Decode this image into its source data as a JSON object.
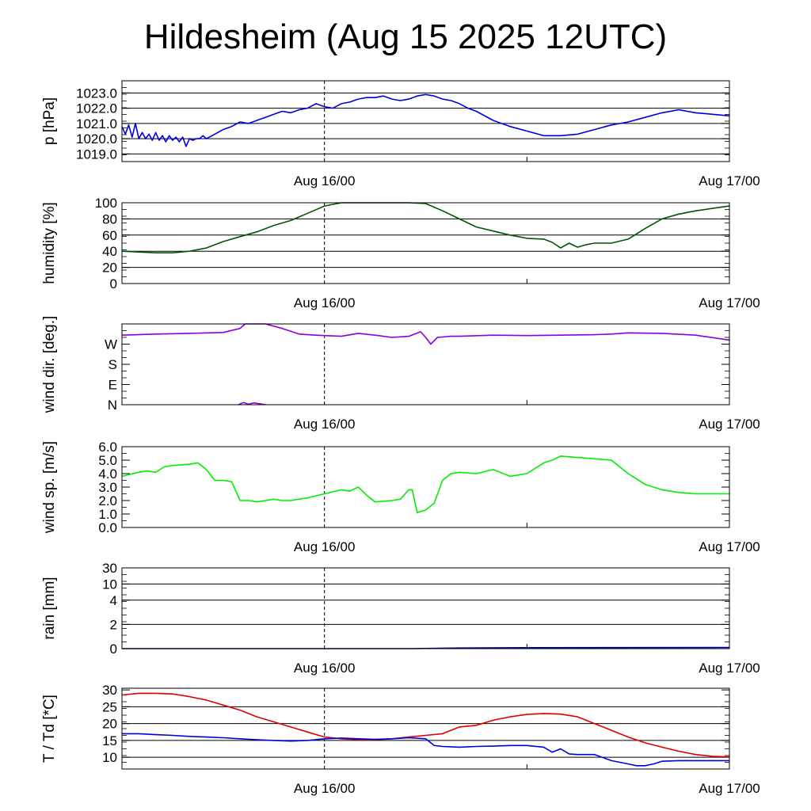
{
  "page": {
    "title": "Hildesheim (Aug 15 2025 12UTC)"
  },
  "chart_data": [
    {
      "type": "line",
      "ylabel": "p [hPa]",
      "x_ticks": [
        "Aug 16/00",
        "Aug 17/00"
      ],
      "x_range": [
        0,
        36
      ],
      "ylim": [
        1018.5,
        1023.8
      ],
      "y_ticks": [
        {
          "v": 1019.0,
          "label": "1019.0"
        },
        {
          "v": 1020.0,
          "label": "1020.0"
        },
        {
          "v": 1021.0,
          "label": "1021.0"
        },
        {
          "v": 1022.0,
          "label": "1022.0"
        },
        {
          "v": 1023.0,
          "label": "1023.0"
        }
      ],
      "grid_y": [
        1019,
        1020,
        1021,
        1022,
        1023
      ],
      "series": [
        {
          "color": "#0000dd",
          "x": [
            0,
            0.2,
            0.4,
            0.6,
            0.8,
            1.0,
            1.2,
            1.4,
            1.6,
            1.8,
            2.0,
            2.2,
            2.4,
            2.6,
            2.8,
            3.0,
            3.2,
            3.4,
            3.6,
            3.8,
            4.0,
            4.2,
            4.4,
            4.6,
            4.8,
            5.0,
            5.5,
            6.0,
            6.5,
            7,
            7.5,
            8,
            8.5,
            9,
            9.5,
            10,
            10.5,
            11,
            11.5,
            12,
            12.5,
            13,
            13.5,
            14,
            14.5,
            15,
            15.5,
            16,
            16.5,
            17,
            17.5,
            18,
            18.5,
            19,
            19.5,
            20,
            20.5,
            21,
            22,
            23,
            24,
            25,
            26,
            27,
            28,
            29,
            30,
            31,
            32,
            33,
            34,
            35,
            36
          ],
          "values": [
            1020.8,
            1020.3,
            1020.9,
            1020.1,
            1021.0,
            1020.0,
            1020.4,
            1020.0,
            1020.3,
            1019.9,
            1020.4,
            1019.9,
            1020.2,
            1019.8,
            1020.2,
            1019.9,
            1020.1,
            1019.8,
            1020.1,
            1019.5,
            1020.0,
            1019.9,
            1020.0,
            1020.0,
            1020.2,
            1020.0,
            1020.3,
            1020.6,
            1020.8,
            1021.1,
            1021.0,
            1021.2,
            1021.4,
            1021.6,
            1021.8,
            1021.7,
            1021.9,
            1022.0,
            1022.3,
            1022.1,
            1022.0,
            1022.3,
            1022.4,
            1022.6,
            1022.7,
            1022.7,
            1022.8,
            1022.6,
            1022.5,
            1022.6,
            1022.8,
            1022.9,
            1022.8,
            1022.6,
            1022.5,
            1022.3,
            1022.0,
            1021.8,
            1021.2,
            1020.8,
            1020.5,
            1020.2,
            1020.2,
            1020.3,
            1020.6,
            1020.9,
            1021.1,
            1021.4,
            1021.7,
            1021.9,
            1021.7,
            1021.6,
            1021.5
          ]
        }
      ]
    },
    {
      "type": "line",
      "ylabel": "humidity [%]",
      "x_ticks": [
        "Aug 16/00",
        "Aug 17/00"
      ],
      "x_range": [
        0,
        36
      ],
      "ylim": [
        0,
        100
      ],
      "y_ticks": [
        {
          "v": 0,
          "label": "0"
        },
        {
          "v": 20,
          "label": "20"
        },
        {
          "v": 40,
          "label": "40"
        },
        {
          "v": 60,
          "label": "60"
        },
        {
          "v": 80,
          "label": "80"
        },
        {
          "v": 100,
          "label": "100"
        }
      ],
      "grid_y": [
        20,
        40,
        60,
        80
      ],
      "series": [
        {
          "color": "#005500",
          "x": [
            0,
            1,
            2,
            3,
            4,
            5,
            6,
            7,
            8,
            9,
            10,
            11,
            12,
            13,
            14,
            15,
            16,
            17,
            18,
            19,
            20,
            21,
            22,
            23,
            24,
            25,
            25.5,
            26,
            26.5,
            27,
            27.5,
            28,
            29,
            30,
            31,
            32,
            33,
            34,
            35,
            36
          ],
          "values": [
            40,
            39,
            38,
            38,
            40,
            44,
            52,
            58,
            64,
            72,
            78,
            87,
            96,
            100,
            100,
            100,
            100,
            100,
            99,
            90,
            80,
            70,
            65,
            60,
            56,
            55,
            51,
            44,
            50,
            45,
            48,
            50,
            50,
            55,
            68,
            80,
            86,
            90,
            93,
            96
          ]
        }
      ]
    },
    {
      "type": "line",
      "ylabel": "wind dir. [deg.]",
      "x_ticks": [
        "Aug 16/00",
        "Aug 17/00"
      ],
      "x_range": [
        0,
        36
      ],
      "ylim": [
        0,
        360
      ],
      "y_ticks": [
        {
          "v": 0,
          "label": "N"
        },
        {
          "v": 90,
          "label": "E"
        },
        {
          "v": 180,
          "label": "S"
        },
        {
          "v": 270,
          "label": "W"
        }
      ],
      "grid_y": [],
      "series": [
        {
          "color": "#8800dd",
          "x": [
            0,
            2,
            4,
            6,
            7,
            7.3,
            8.5,
            9.5,
            10.5,
            11.5,
            12,
            13,
            14,
            15,
            16,
            17,
            17.7,
            18,
            18.3,
            18.7,
            19.5,
            20,
            22,
            24,
            26,
            28,
            29,
            30,
            32,
            34,
            36
          ],
          "values": [
            310,
            315,
            318,
            322,
            340,
            360,
            360,
            340,
            315,
            310,
            308,
            305,
            318,
            310,
            300,
            305,
            325,
            300,
            270,
            300,
            305,
            305,
            310,
            308,
            310,
            312,
            315,
            320,
            318,
            310,
            288
          ]
        },
        {
          "color": "#8800dd",
          "x": [
            6.9,
            7.2,
            7.5,
            7.8,
            8.2,
            8.5
          ],
          "values": [
            0,
            10,
            2,
            8,
            4,
            0
          ]
        }
      ]
    },
    {
      "type": "line",
      "ylabel": "wind sp. [m/s]",
      "x_ticks": [
        "Aug 16/00",
        "Aug 17/00"
      ],
      "x_range": [
        0,
        36
      ],
      "ylim": [
        0,
        6.0
      ],
      "y_ticks": [
        {
          "v": 0,
          "label": "0.0"
        },
        {
          "v": 1,
          "label": "1.0"
        },
        {
          "v": 2,
          "label": "2.0"
        },
        {
          "v": 3,
          "label": "3.0"
        },
        {
          "v": 4,
          "label": "4.0"
        },
        {
          "v": 5,
          "label": "5.0"
        },
        {
          "v": 6,
          "label": "6.0"
        }
      ],
      "grid_y": [],
      "series": [
        {
          "color": "#00ee00",
          "x": [
            0,
            1,
            1.5,
            2,
            2.5,
            3,
            4,
            4.5,
            5,
            5.5,
            6,
            6.5,
            7,
            7.5,
            8,
            8.5,
            9,
            9.5,
            10,
            11,
            12,
            13,
            13.5,
            14,
            14.5,
            15,
            16,
            16.5,
            17,
            17.2,
            17.5,
            18,
            18.5,
            19,
            19.5,
            20,
            21,
            22,
            23,
            24,
            25,
            25.5,
            26,
            27,
            28,
            29,
            30,
            31,
            32,
            33,
            34,
            35,
            36
          ],
          "values": [
            3.8,
            4.1,
            4.2,
            4.1,
            4.5,
            4.6,
            4.7,
            4.8,
            4.3,
            3.5,
            3.5,
            3.4,
            2.0,
            2.0,
            1.9,
            2.0,
            2.1,
            2.0,
            2.0,
            2.2,
            2.5,
            2.8,
            2.7,
            3.0,
            2.4,
            1.9,
            2.0,
            2.1,
            2.8,
            2.8,
            1.1,
            1.3,
            1.8,
            3.5,
            4.0,
            4.1,
            4.0,
            4.3,
            3.8,
            4.0,
            4.8,
            5.0,
            5.3,
            5.2,
            5.1,
            5.0,
            4.0,
            3.2,
            2.8,
            2.6,
            2.5,
            2.5,
            2.5
          ]
        }
      ]
    },
    {
      "type": "line",
      "ylabel": "rain [mm]",
      "x_ticks": [
        "Aug 16/00",
        "Aug 17/00"
      ],
      "x_range": [
        0,
        36
      ],
      "scale": "nonlinear",
      "ylim": [
        0,
        30
      ],
      "y_ticks": [
        {
          "v": 0,
          "label": "0"
        },
        {
          "v": 2,
          "label": "2"
        },
        {
          "v": 4,
          "label": "4"
        },
        {
          "v": 10,
          "label": "10"
        },
        {
          "v": 30,
          "label": "30"
        }
      ],
      "grid_y": [
        2,
        4,
        10,
        30
      ],
      "series": [
        {
          "color": "#0000aa",
          "x": [
            0,
            17,
            20,
            24,
            36
          ],
          "values": [
            0,
            0,
            0.05,
            0.08,
            0.1
          ]
        }
      ]
    },
    {
      "type": "line",
      "ylabel": "T / Td [*C]",
      "x_ticks": [
        "Aug 16/00",
        "Aug 17/00"
      ],
      "x_range": [
        0,
        36
      ],
      "ylim": [
        6.5,
        30.5
      ],
      "y_ticks": [
        {
          "v": 10,
          "label": "10"
        },
        {
          "v": 15,
          "label": "15"
        },
        {
          "v": 20,
          "label": "20"
        },
        {
          "v": 25,
          "label": "25"
        },
        {
          "v": 30,
          "label": "30"
        }
      ],
      "grid_y": [
        10,
        15,
        20,
        25
      ],
      "series": [
        {
          "color": "#dd0000",
          "x": [
            0,
            1,
            2,
            3,
            4,
            5,
            6,
            7,
            8,
            9,
            10,
            11,
            12,
            13,
            14,
            15,
            16,
            17,
            18,
            19,
            20,
            21,
            22,
            23,
            24,
            25,
            26,
            27,
            28,
            29,
            30,
            31,
            32,
            33,
            34,
            35,
            36
          ],
          "values": [
            28.5,
            29,
            29,
            28.8,
            28,
            27,
            25.5,
            24,
            22,
            20.5,
            19,
            17.5,
            16,
            15.5,
            15.2,
            15.2,
            15.5,
            16,
            16.5,
            17,
            19,
            19.5,
            21,
            22,
            22.7,
            23,
            22.8,
            22,
            20,
            18,
            16,
            14.3,
            13,
            11.8,
            10.8,
            10.3,
            10.1
          ]
        },
        {
          "color": "#0000dd",
          "x": [
            0,
            1,
            2,
            3,
            4,
            5,
            6,
            7,
            8,
            9,
            10,
            11,
            12,
            13,
            14,
            15,
            16,
            17,
            18,
            18.5,
            19,
            20,
            21,
            22,
            23,
            24,
            25,
            25.5,
            26,
            26.5,
            27,
            28,
            29,
            30,
            30.5,
            31,
            31.5,
            32,
            33,
            34,
            35,
            36
          ],
          "values": [
            17,
            17,
            16.7,
            16.5,
            16.2,
            16,
            15.8,
            15.5,
            15.2,
            15,
            14.8,
            15,
            15.5,
            15.7,
            15.5,
            15.3,
            15.5,
            15.8,
            15.5,
            13.5,
            13.2,
            13,
            13.2,
            13.3,
            13.5,
            13.5,
            13,
            11.5,
            12.5,
            11,
            10.8,
            10.8,
            9,
            8,
            7.5,
            7.5,
            8,
            8.8,
            9,
            9,
            9,
            9
          ]
        }
      ]
    }
  ]
}
